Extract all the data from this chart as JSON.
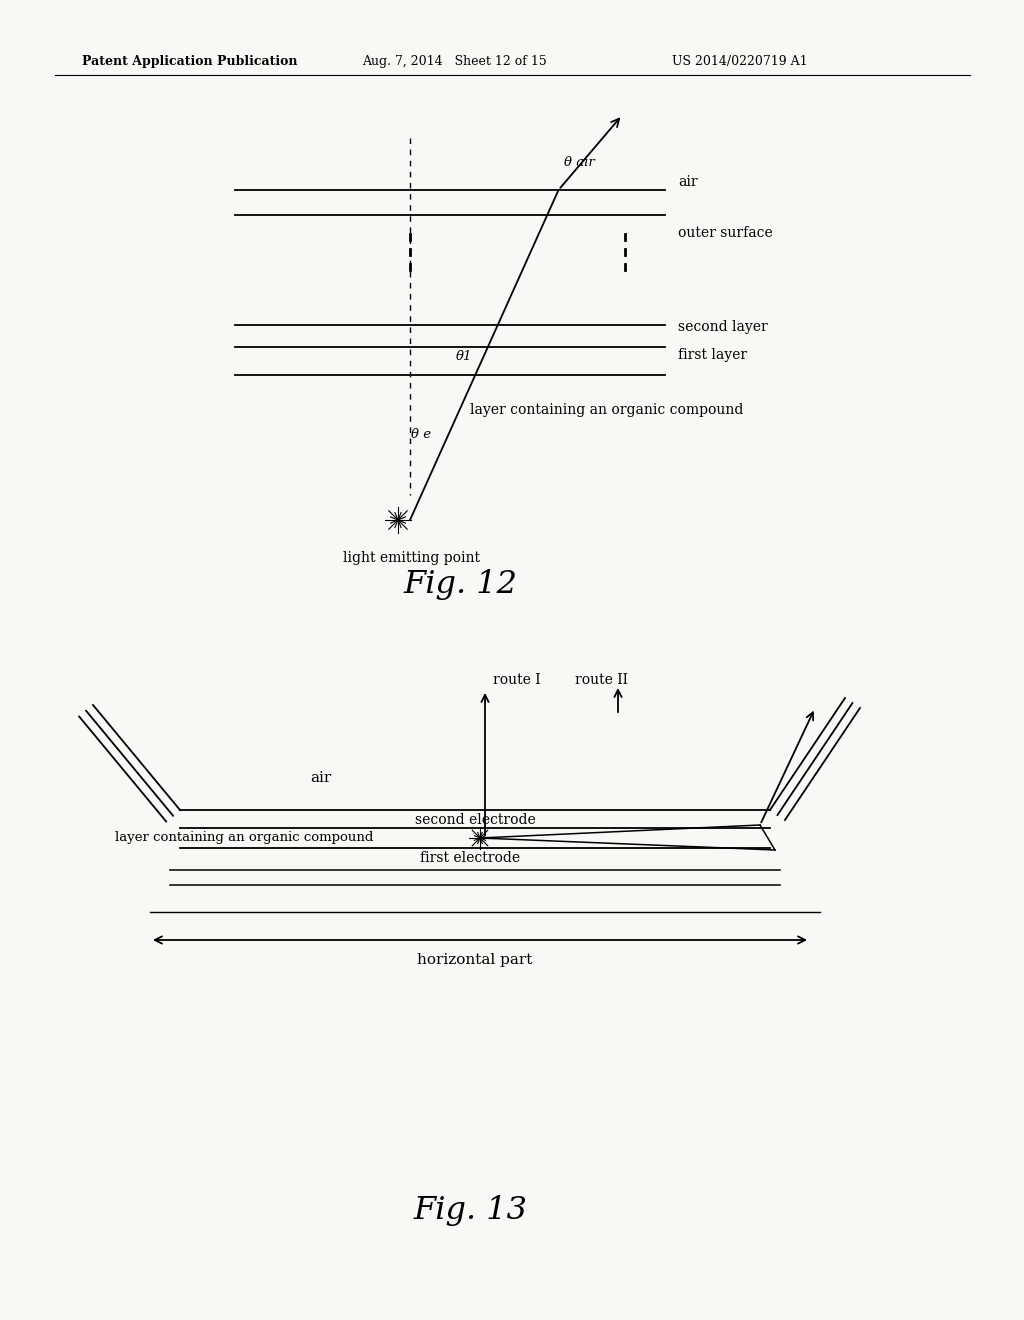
{
  "bg_color": "#f8f8f6",
  "header_text": "Patent Application Publication",
  "header_date": "Aug. 7, 2014   Sheet 12 of 15",
  "header_patent": "US 2014/0220719 A1",
  "fig12_caption": "Fig. 12",
  "fig13_caption": "Fig. 13",
  "fig12_labels": {
    "air": "air",
    "outer_surface": "outer surface",
    "second_layer": "second layer",
    "first_layer": "first layer",
    "organic_layer": "layer containing an organic compound",
    "light_emitting": "light emitting point",
    "theta_air": "θ air",
    "theta_1": "θ1",
    "theta_e": "θ e"
  },
  "fig13_labels": {
    "route1": "route I",
    "route2": "route II",
    "air": "air",
    "second_electrode": "second electrode",
    "organic_layer": "layer containing an organic compound",
    "first_electrode": "first electrode",
    "horizontal_part": "horizontal part"
  }
}
